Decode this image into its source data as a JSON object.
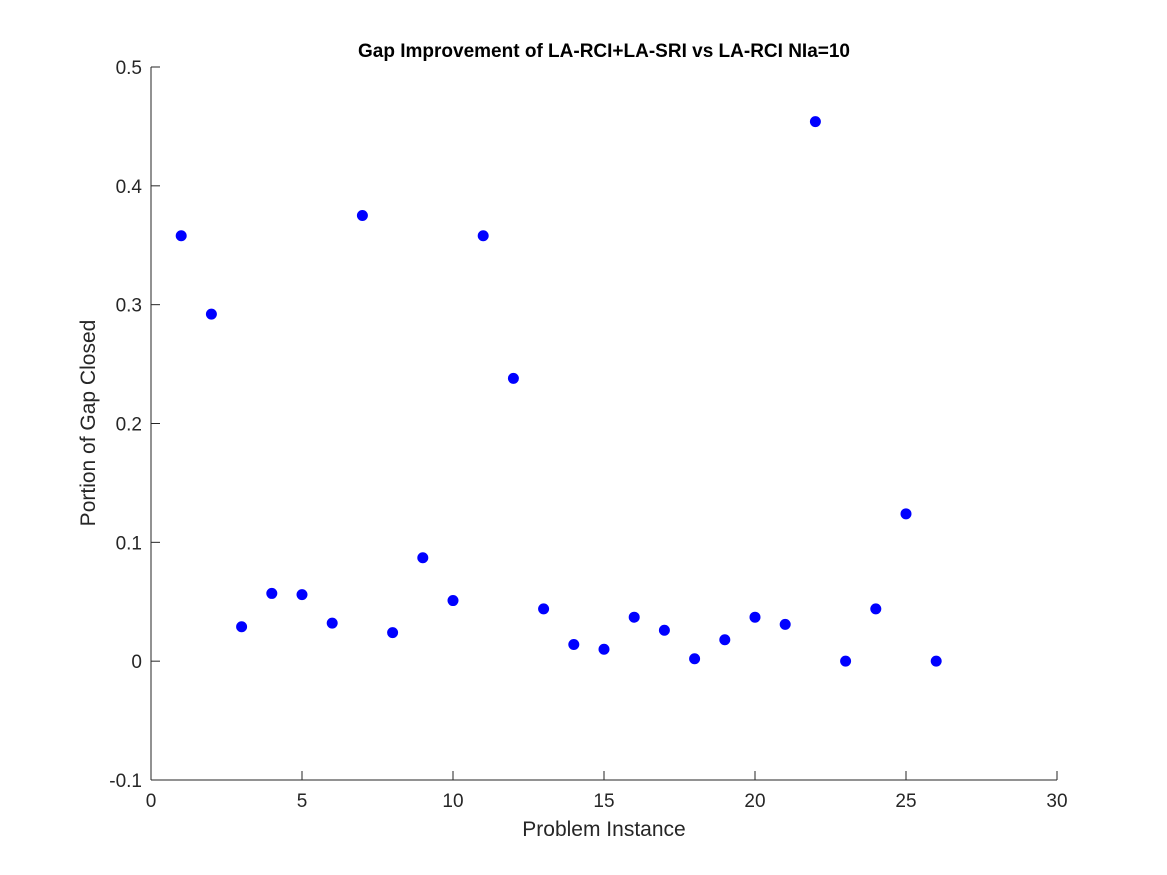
{
  "chart_data": {
    "type": "scatter",
    "title": "Gap Improvement of LA-RCI+LA-SRI vs LA-RCI  NIa=10",
    "xlabel": "Problem Instance",
    "ylabel": "Portion of Gap Closed",
    "xlim": [
      0,
      30
    ],
    "ylim": [
      -0.1,
      0.5
    ],
    "xticks": [
      0,
      5,
      10,
      15,
      20,
      25,
      30
    ],
    "yticks": [
      -0.1,
      0,
      0.1,
      0.2,
      0.3,
      0.4,
      0.5
    ],
    "xtick_labels": [
      "0",
      "5",
      "10",
      "15",
      "20",
      "25",
      "30"
    ],
    "ytick_labels": [
      "-0.1",
      "0",
      "0.1",
      "0.2",
      "0.3",
      "0.4",
      "0.5"
    ],
    "grid": false,
    "marker_color": "#0000ff",
    "series": [
      {
        "x": [
          1,
          2,
          3,
          4,
          5,
          6,
          7,
          8,
          9,
          10,
          11,
          12,
          13,
          14,
          15,
          16,
          17,
          18,
          19,
          20,
          21,
          22,
          23,
          24,
          25,
          26
        ],
        "y": [
          0.358,
          0.292,
          0.029,
          0.057,
          0.056,
          0.032,
          0.375,
          0.024,
          0.087,
          0.051,
          0.358,
          0.238,
          0.044,
          0.014,
          0.01,
          0.037,
          0.026,
          0.002,
          0.018,
          0.037,
          0.031,
          0.454,
          0.0,
          0.044,
          0.124,
          0.0
        ]
      }
    ]
  }
}
